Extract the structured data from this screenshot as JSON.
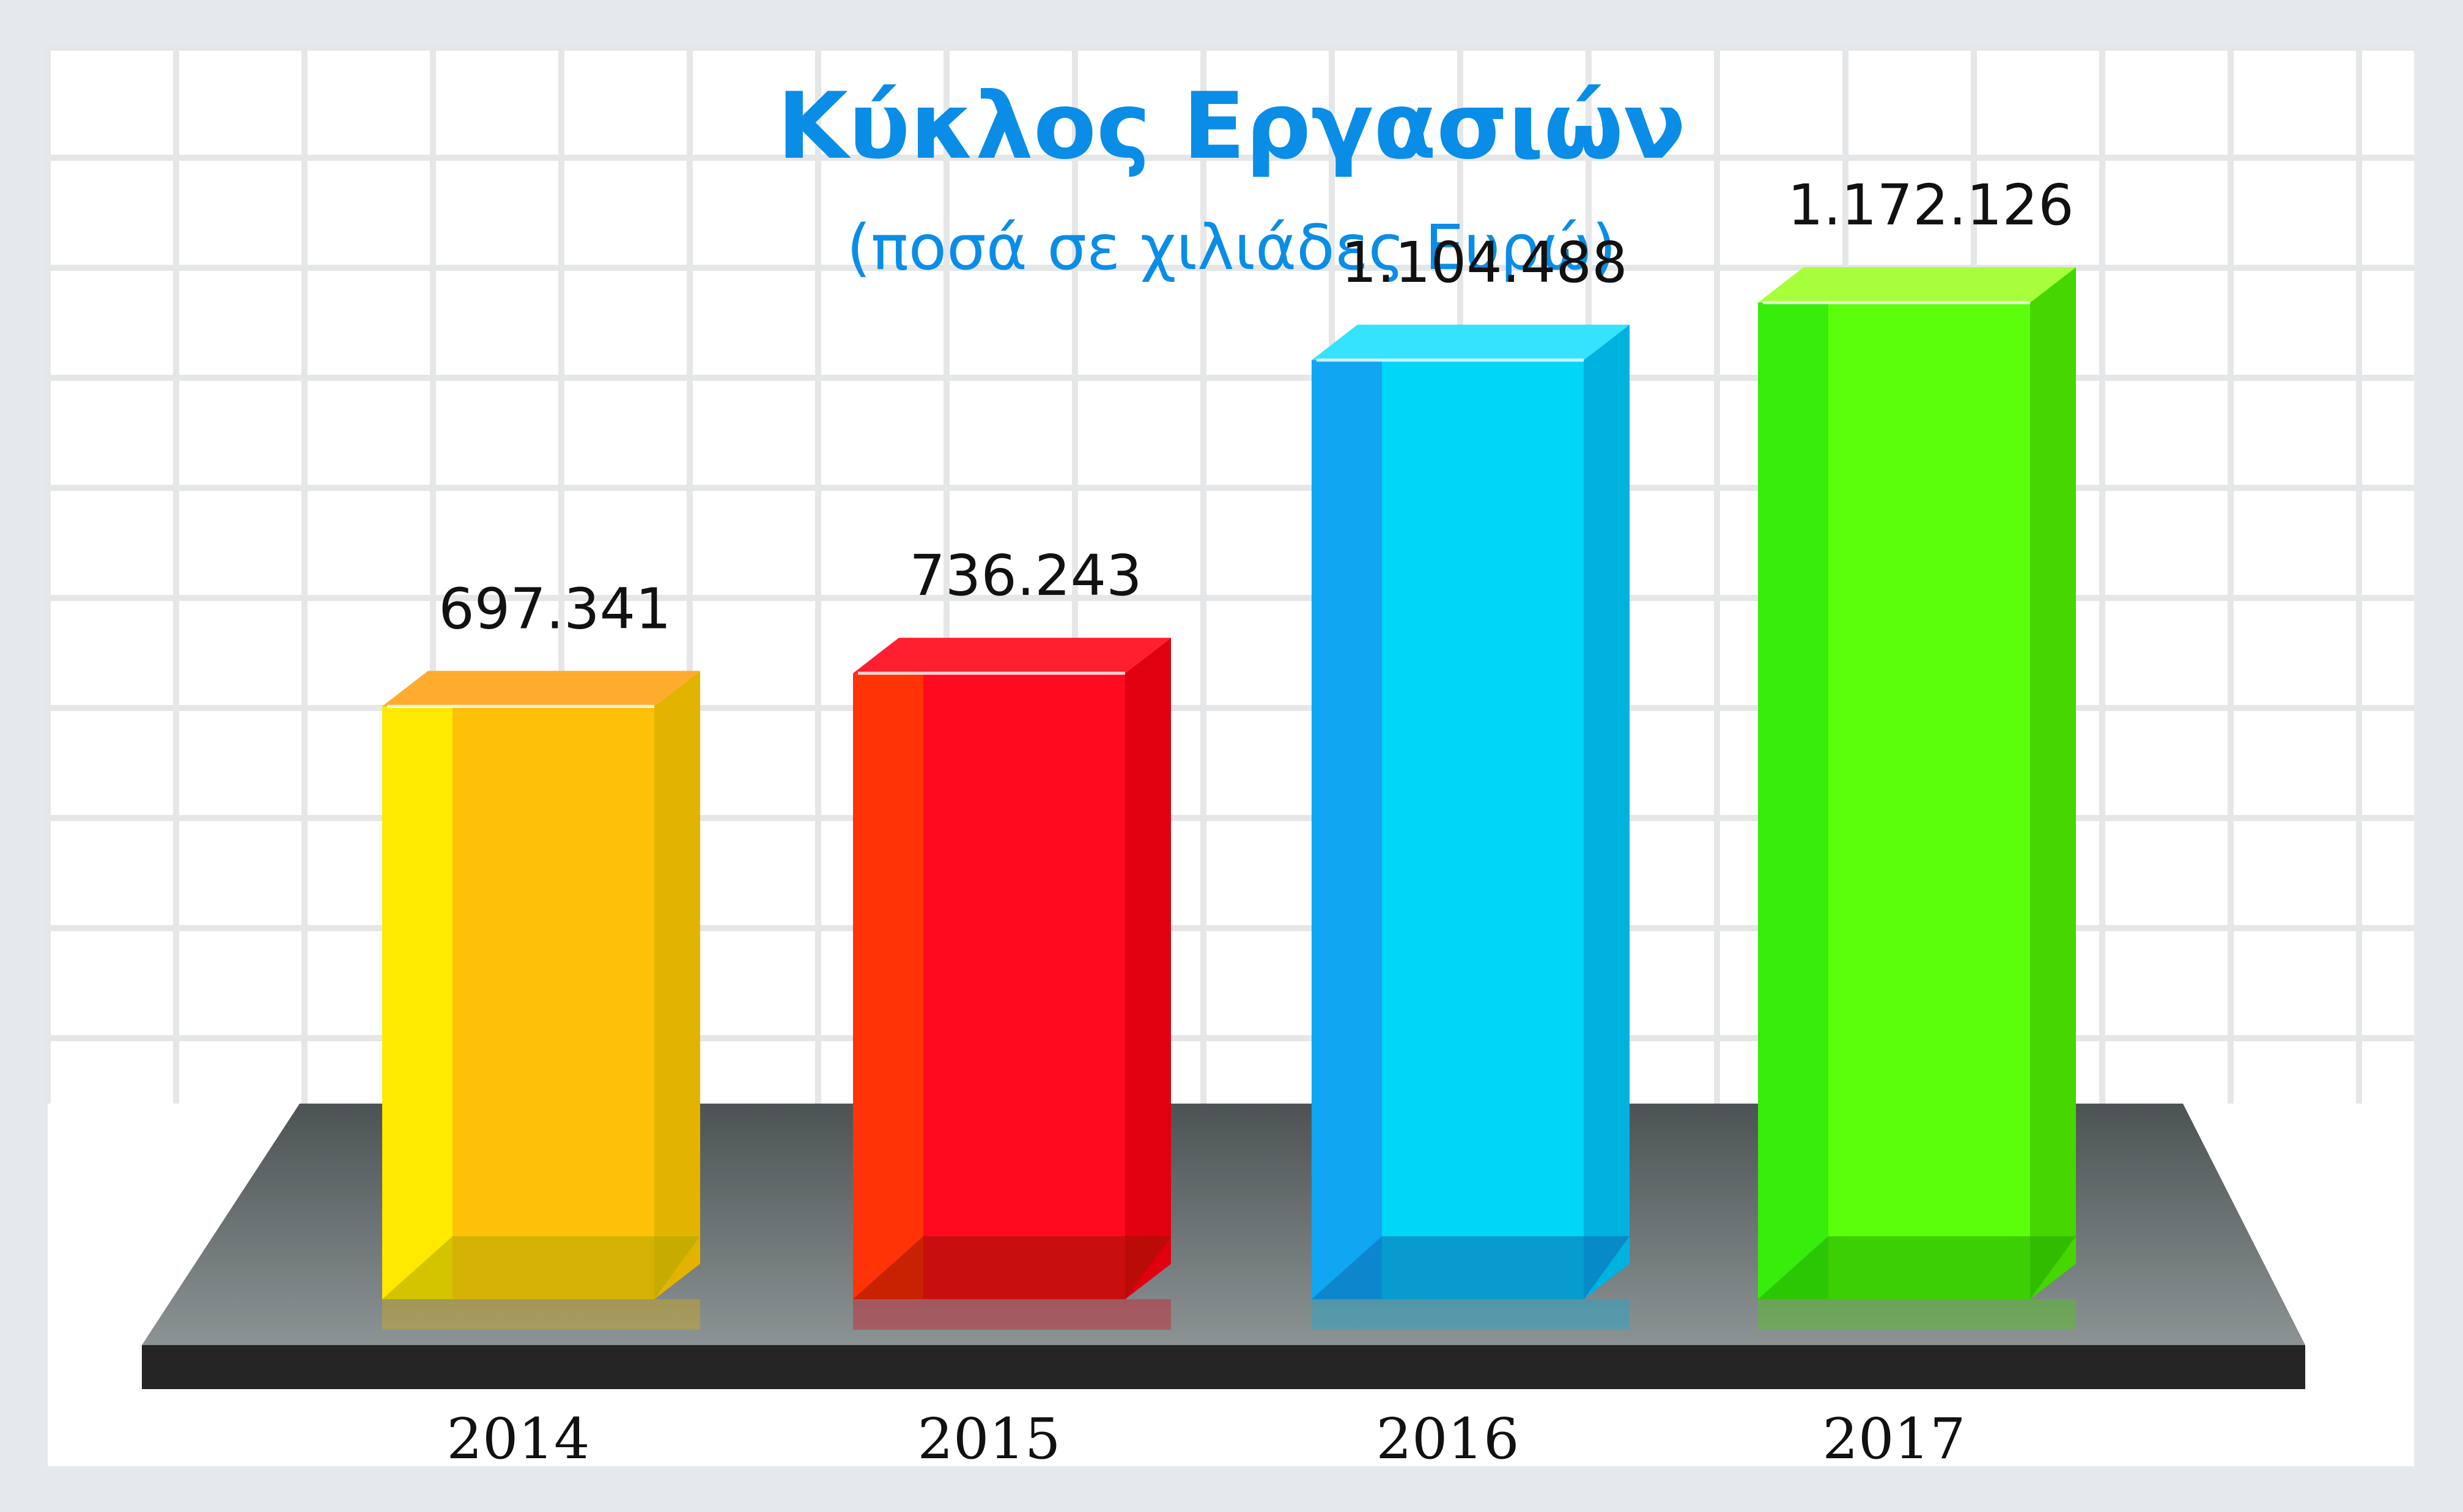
{
  "chart_data": {
    "type": "bar",
    "title": "Κύκλος Εργασιών",
    "subtitle": "(ποσά σε χιλιάδες Ευρώ)",
    "categories": [
      "2014",
      "2015",
      "2016",
      "2017"
    ],
    "values": [
      697341,
      736243,
      1104488,
      1172126
    ],
    "value_labels": [
      "697.341",
      "736.243",
      "1.104.488",
      "1.172.126"
    ],
    "grid": true,
    "legend": "none",
    "style": "3d-columns"
  },
  "colors": {
    "title": "#0a8de6",
    "bars": [
      {
        "front": "#ffc107",
        "front_light": "#fff200",
        "side": "#e2b400",
        "top": "#ffab2e",
        "floor": "#b0a600"
      },
      {
        "front": "#ff0a1e",
        "front_light": "#ff3d00",
        "side": "#e00010",
        "top": "#ff1f2f",
        "floor": "#9a1400"
      },
      {
        "front": "#00d6f5",
        "front_light": "#149af0",
        "side": "#00b2e0",
        "top": "#35e3ff",
        "floor": "#0c6bb0"
      },
      {
        "front": "#5cff0a",
        "front_light": "#2ee80a",
        "side": "#46d600",
        "top": "#a6ff3a",
        "floor": "#22a800"
      }
    ],
    "platform": "#6b7273",
    "platform_edge": "#252525"
  }
}
